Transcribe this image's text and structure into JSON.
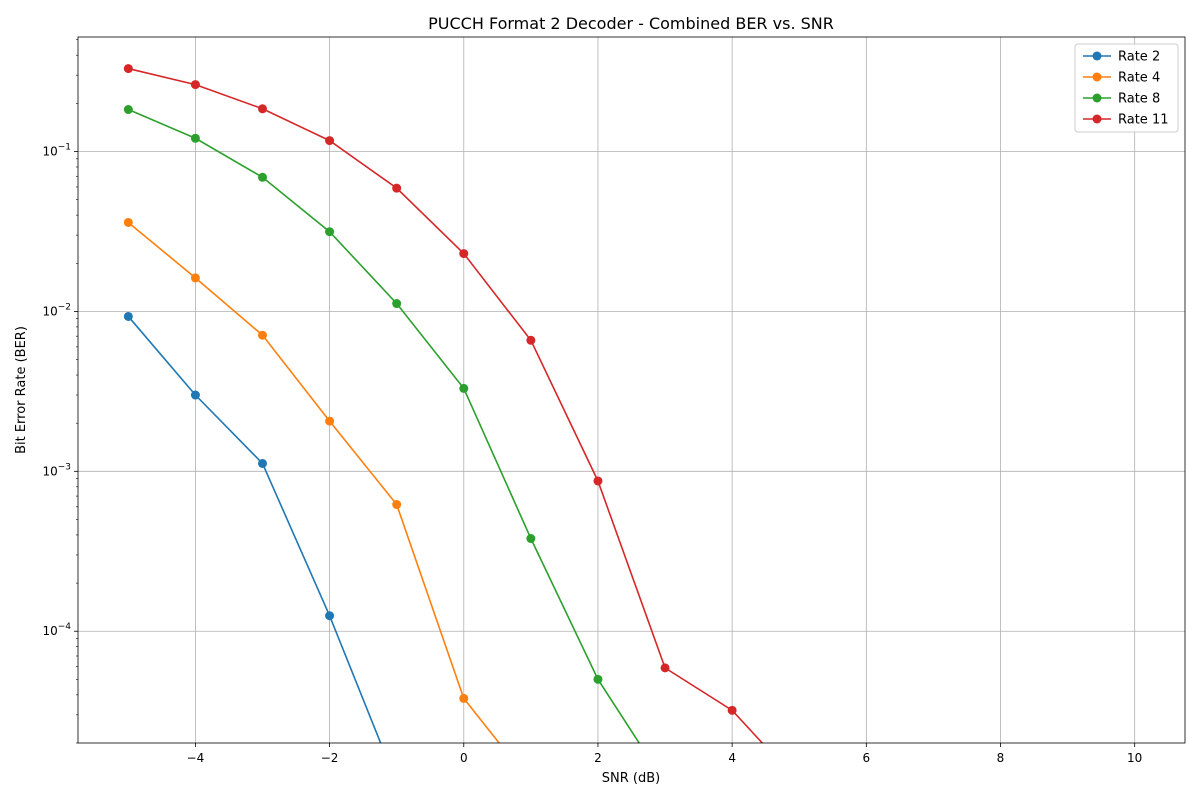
{
  "chart_data": {
    "type": "line",
    "title": "PUCCH Format 2 Decoder - Combined BER vs. SNR",
    "xlabel": "SNR (dB)",
    "ylabel": "Bit Error Rate (BER)",
    "xlim": [
      -5.75,
      10.75
    ],
    "ylim": [
      2e-05,
      0.52
    ],
    "yscale": "log",
    "grid": true,
    "legend_position": "top-right",
    "x": [
      -5,
      -4,
      -3,
      -2,
      -1,
      0,
      1,
      2,
      3,
      4,
      5,
      6,
      7,
      8,
      9,
      10
    ],
    "x_ticks": [
      -4,
      -2,
      0,
      2,
      4,
      6,
      8,
      10
    ],
    "x_tick_labels": [
      "−4",
      "−2",
      "0",
      "2",
      "4",
      "6",
      "8",
      "10"
    ],
    "y_ticks": [
      0.0001,
      0.001,
      0.01,
      0.1
    ],
    "y_tick_labels": [
      {
        "base": "10",
        "exp": "−4"
      },
      {
        "base": "10",
        "exp": "−3"
      },
      {
        "base": "10",
        "exp": "−2"
      },
      {
        "base": "10",
        "exp": "−1"
      }
    ],
    "series": [
      {
        "name": "Rate 2",
        "color": "#1f77b4",
        "values": [
          0.0093,
          0.003,
          0.00112,
          0.000125,
          0,
          0,
          0,
          0,
          0,
          0,
          0,
          0,
          0,
          0,
          0,
          0
        ]
      },
      {
        "name": "Rate 4",
        "color": "#ff7f0e",
        "values": [
          0.036,
          0.0162,
          0.0071,
          0.00206,
          0.00062,
          3.8e-05,
          0,
          0,
          0,
          0,
          0,
          0,
          0,
          0,
          0,
          0
        ]
      },
      {
        "name": "Rate 8",
        "color": "#2ca02c",
        "values": [
          0.183,
          0.121,
          0.069,
          0.0315,
          0.0112,
          0.0033,
          0.00038,
          5e-05,
          0,
          0,
          0,
          0,
          0,
          0,
          0,
          0
        ]
      },
      {
        "name": "Rate 11",
        "color": "#d62728",
        "values": [
          0.33,
          0.262,
          0.185,
          0.117,
          0.059,
          0.023,
          0.0066,
          0.00087,
          5.9e-05,
          3.2e-05,
          0,
          0,
          0,
          0,
          0,
          0
        ]
      }
    ]
  }
}
